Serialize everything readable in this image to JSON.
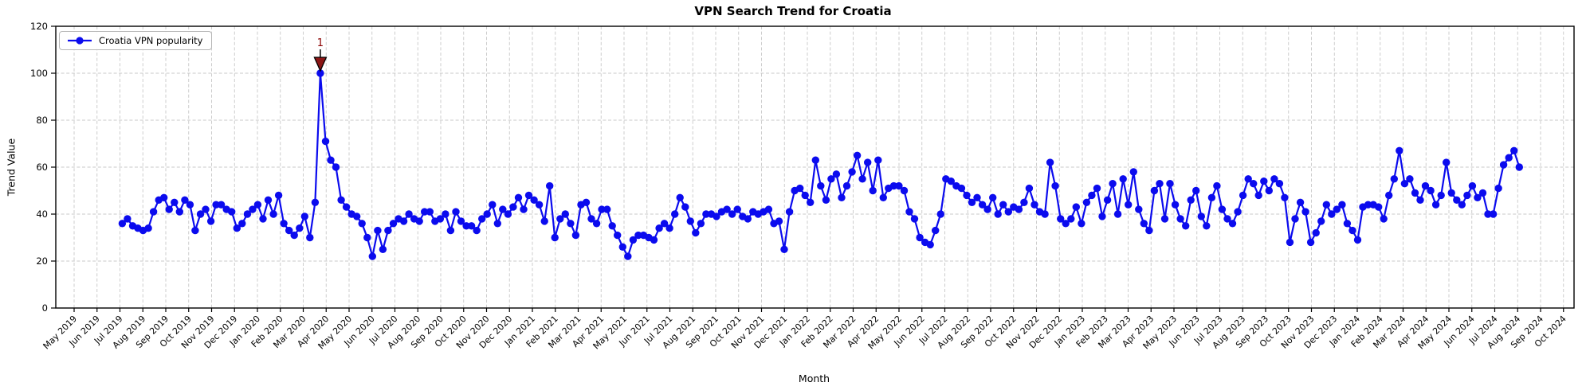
{
  "chart_data": {
    "type": "line",
    "title": "VPN Search Trend for Croatia",
    "xlabel": "Month",
    "ylabel": "Trend Value",
    "legend": [
      "Croatia VPN popularity"
    ],
    "legend_position": "upper left",
    "grid": true,
    "line_color": "#0b0bee",
    "marker": "circle",
    "ylim": [
      0,
      120
    ],
    "yticks": [
      0,
      20,
      40,
      60,
      80,
      100,
      120
    ],
    "xtick_labels": [
      "May 2019",
      "Jun 2019",
      "Jul 2019",
      "Aug 2019",
      "Sep 2019",
      "Oct 2019",
      "Nov 2019",
      "Dec 2019",
      "Jan 2020",
      "Feb 2020",
      "Mar 2020",
      "Apr 2020",
      "May 2020",
      "Jun 2020",
      "Jul 2020",
      "Aug 2020",
      "Sep 2020",
      "Oct 2020",
      "Nov 2020",
      "Dec 2020",
      "Jan 2021",
      "Feb 2021",
      "Mar 2021",
      "Apr 2021",
      "May 2021",
      "Jun 2021",
      "Jul 2021",
      "Aug 2021",
      "Sep 2021",
      "Oct 2021",
      "Nov 2021",
      "Dec 2021",
      "Jan 2022",
      "Feb 2022",
      "Mar 2022",
      "Apr 2022",
      "May 2022",
      "Jun 2022",
      "Jul 2022",
      "Aug 2022",
      "Sep 2022",
      "Oct 2022",
      "Nov 2022",
      "Dec 2022",
      "Jan 2023",
      "Feb 2023",
      "Mar 2023",
      "Apr 2023",
      "May 2023",
      "Jun 2023",
      "Jul 2023",
      "Aug 2023",
      "Sep 2023",
      "Oct 2023",
      "Nov 2023",
      "Dec 2023",
      "Jan 2024",
      "Feb 2024",
      "Mar 2024",
      "Apr 2024",
      "May 2024",
      "Jun 2024",
      "Jul 2024",
      "Aug 2024",
      "Sep 2024",
      "Oct 2024"
    ],
    "x_unit": "weekly samples, months since May 2019",
    "x_start_month_index": 2.1,
    "x_step_months": 0.2275,
    "values": [
      36,
      38,
      35,
      34,
      33,
      34,
      41,
      46,
      47,
      42,
      45,
      41,
      46,
      44,
      33,
      40,
      42,
      37,
      44,
      44,
      42,
      41,
      34,
      36,
      40,
      42,
      44,
      38,
      46,
      40,
      48,
      36,
      33,
      31,
      34,
      39,
      30,
      45,
      100,
      71,
      63,
      60,
      46,
      43,
      40,
      39,
      36,
      30,
      22,
      33,
      25,
      33,
      36,
      38,
      37,
      40,
      38,
      37,
      41,
      41,
      37,
      38,
      40,
      33,
      41,
      37,
      35,
      35,
      33,
      38,
      40,
      44,
      36,
      42,
      40,
      43,
      47,
      42,
      48,
      46,
      44,
      37,
      52,
      30,
      38,
      40,
      36,
      31,
      44,
      45,
      38,
      36,
      42,
      42,
      35,
      31,
      26,
      22,
      29,
      31,
      31,
      30,
      29,
      34,
      36,
      34,
      40,
      47,
      43,
      37,
      32,
      36,
      40,
      40,
      39,
      41,
      42,
      40,
      42,
      39,
      38,
      41,
      40,
      41,
      42,
      36,
      37,
      25,
      41,
      50,
      51,
      48,
      45,
      63,
      52,
      46,
      55,
      57,
      47,
      52,
      58,
      65,
      55,
      62,
      50,
      63,
      47,
      51,
      52,
      52,
      50,
      41,
      38,
      30,
      28,
      27,
      33,
      40,
      55,
      54,
      52,
      51,
      48,
      45,
      47,
      44,
      42,
      47,
      40,
      44,
      41,
      43,
      42,
      45,
      51,
      44,
      41,
      40,
      62,
      52,
      38,
      36,
      38,
      43,
      36,
      45,
      48,
      51,
      39,
      46,
      53,
      40,
      55,
      44,
      58,
      42,
      36,
      33,
      50,
      53,
      38,
      53,
      44,
      38,
      35,
      46,
      50,
      39,
      35,
      47,
      52,
      42,
      38,
      36,
      41,
      48,
      55,
      53,
      48,
      54,
      50,
      55,
      53,
      47,
      28,
      38,
      45,
      41,
      28,
      32,
      37,
      44,
      40,
      42,
      44,
      36,
      33,
      29,
      43,
      44,
      44,
      43,
      38,
      48,
      55,
      67,
      53,
      55,
      49,
      46,
      52,
      50,
      44,
      48,
      62,
      49,
      46,
      44,
      48,
      52,
      47,
      49,
      40,
      40,
      51,
      61,
      64,
      67,
      60
    ],
    "annotation": {
      "label": "1",
      "marker": "triangle-down",
      "marker_color": "#8b1515",
      "label_color": "#8b0000",
      "anchored_to": "maximum value (100, Apr 2020)"
    }
  }
}
